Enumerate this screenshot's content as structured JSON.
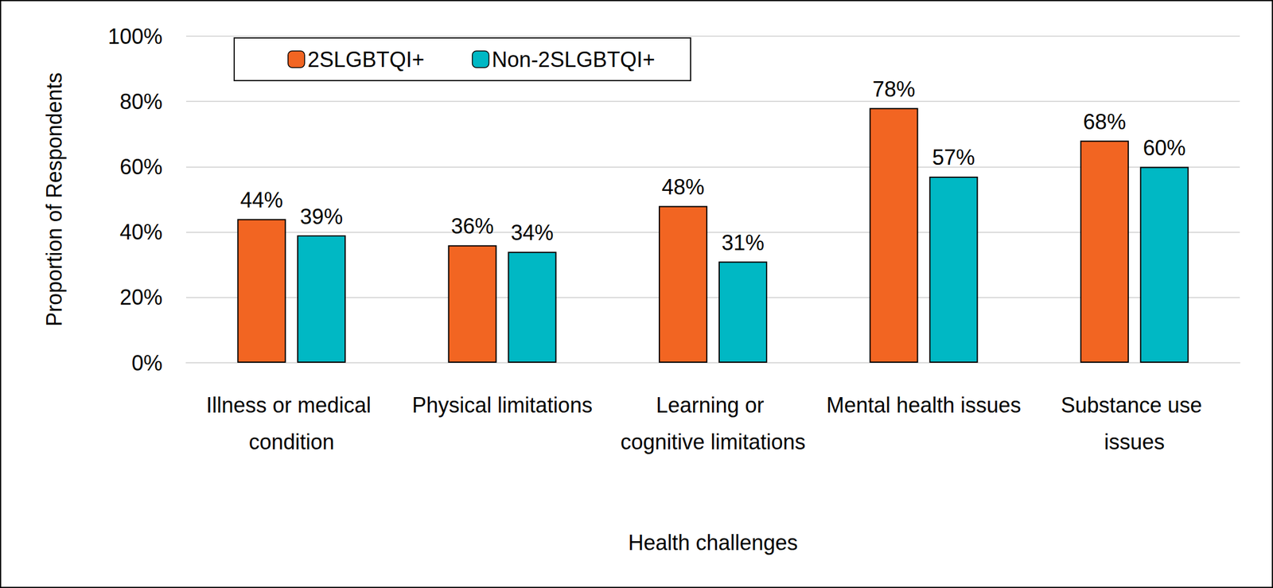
{
  "chart_data": {
    "type": "bar",
    "x_label": "Health challenges",
    "y_label": "Proportion of Respondents",
    "categories": [
      "Illness or medical condition",
      "Physical limitations",
      "Learning or cognitive limitations",
      "Mental health issues",
      "Substance use issues"
    ],
    "series": [
      {
        "name": "2SLGBTQI+",
        "color": "#f26522",
        "values": [
          44,
          36,
          48,
          78,
          68
        ],
        "value_labels": [
          "44%",
          "36%",
          "48%",
          "78%",
          "68%"
        ]
      },
      {
        "name": "Non-2SLGBTQI+",
        "color": "#00b8c4",
        "values": [
          39,
          34,
          31,
          57,
          60
        ],
        "value_labels": [
          "39%",
          "34%",
          "31%",
          "57%",
          "60%"
        ]
      }
    ],
    "ylim": [
      0,
      100
    ],
    "yticks": [
      {
        "value": 0,
        "label": "0%"
      },
      {
        "value": 20,
        "label": "20%"
      },
      {
        "value": 40,
        "label": "40%"
      },
      {
        "value": 60,
        "label": "60%"
      },
      {
        "value": 80,
        "label": "80%"
      },
      {
        "value": 100,
        "label": "100%"
      }
    ],
    "grid": true,
    "legend": "upper left",
    "data_labels": true
  }
}
